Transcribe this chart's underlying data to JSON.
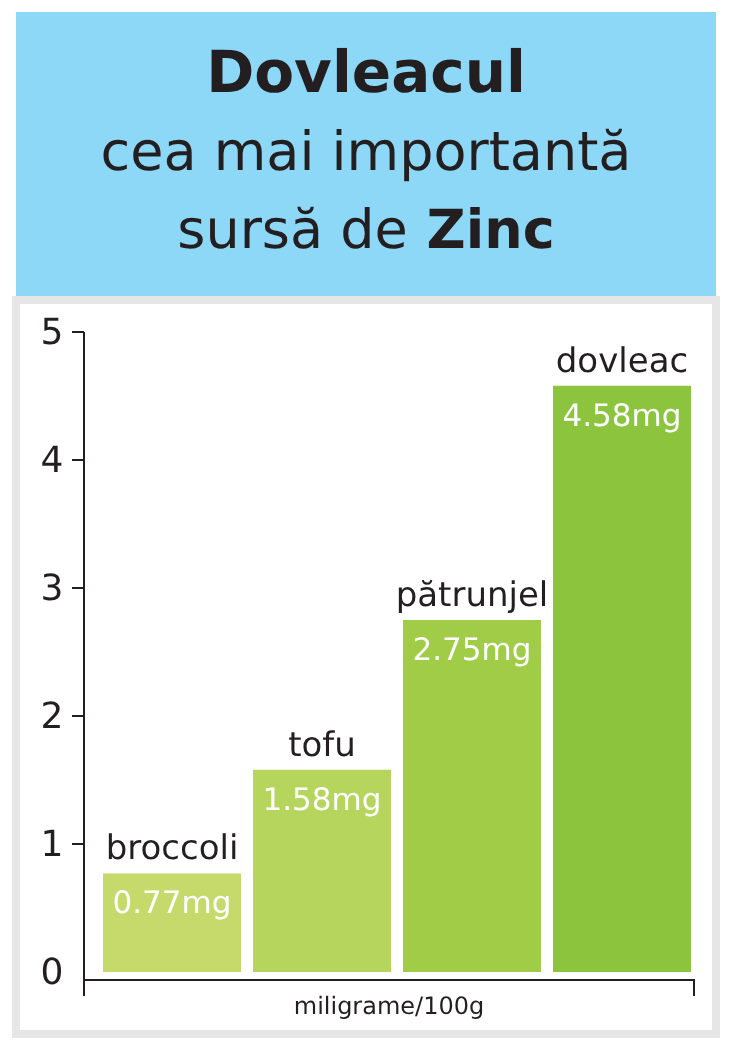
{
  "chart_data": {
    "type": "bar",
    "title": "Dovleacul\ncea mai importantă\nsursă de Zinc",
    "xlabel": "miligrame/100g",
    "categories": [
      "broccoli",
      "tofu",
      "pătrunjel",
      "dovleac"
    ],
    "values": [
      0.77,
      1.58,
      2.75,
      4.58
    ],
    "value_labels": [
      "0.77mg",
      "1.58mg",
      "2.75mg",
      "4.58mg"
    ],
    "colors": [
      "#c6d96b",
      "#b5d55d",
      "#a0cc48",
      "#8dc43d"
    ],
    "ylim": [
      0,
      5
    ],
    "yticks": [
      0,
      1,
      2,
      3,
      4,
      5
    ],
    "grid": false
  }
}
